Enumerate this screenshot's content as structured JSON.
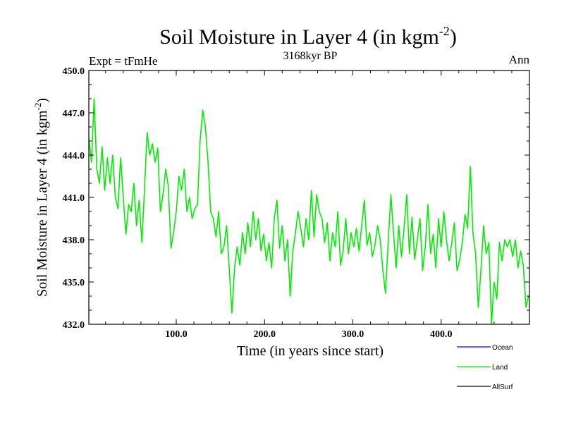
{
  "header": {
    "title": "Soil Moisture in Layer 4 (in kgm",
    "title_sup": "-2",
    "title_close": ")",
    "subtitle": "3168kyr BP",
    "left_label": "Expt = tFmHe",
    "right_label": "Ann"
  },
  "axes": {
    "xlabel": "Time (in years since start)",
    "ylabel": "Soil Moisture in Layer 4 (in kgm",
    "ylabel_sup": "-2",
    "ylabel_close": ")"
  },
  "colors": {
    "land": "#00ee00",
    "ocean": "#0000ff",
    "allsurf": "#000000",
    "frame": "#000000"
  },
  "chart_data": {
    "type": "line",
    "title": "Soil Moisture in Layer 4 (in kgm-2)",
    "xlabel": "Time (in years since start)",
    "ylabel": "Soil Moisture in Layer 4 (in kgm-2)",
    "xlim": [
      1,
      500
    ],
    "ylim": [
      432.0,
      450.0
    ],
    "xticks": [
      100,
      200,
      300,
      400
    ],
    "xtick_labels": [
      "100.0",
      "200.0",
      "300.0",
      "400.0"
    ],
    "yticks": [
      432,
      435,
      438,
      441,
      444,
      447,
      450
    ],
    "ytick_labels": [
      "432.0",
      "435.0",
      "438.0",
      "441.0",
      "444.0",
      "447.0",
      "450.0"
    ],
    "legend": {
      "position": "bottom-right",
      "entries": [
        "Ocean",
        "Land",
        "AllSurf"
      ]
    },
    "series": [
      {
        "name": "Land",
        "color": "#00ee00",
        "x": [
          1,
          4,
          7,
          10,
          13,
          16,
          19,
          22,
          25,
          28,
          31,
          34,
          37,
          40,
          43,
          46,
          49,
          52,
          55,
          58,
          61,
          64,
          67,
          70,
          73,
          76,
          79,
          82,
          85,
          88,
          91,
          94,
          97,
          100,
          103,
          106,
          109,
          112,
          115,
          118,
          121,
          124,
          127,
          130,
          133,
          136,
          139,
          142,
          145,
          148,
          151,
          154,
          157,
          160,
          163,
          166,
          169,
          172,
          175,
          178,
          181,
          184,
          187,
          190,
          193,
          196,
          199,
          202,
          205,
          208,
          211,
          214,
          217,
          220,
          223,
          226,
          229,
          232,
          235,
          238,
          241,
          244,
          247,
          250,
          253,
          256,
          259,
          262,
          265,
          268,
          271,
          274,
          277,
          280,
          283,
          286,
          289,
          292,
          295,
          298,
          301,
          304,
          307,
          310,
          313,
          316,
          319,
          322,
          325,
          328,
          331,
          334,
          337,
          340,
          343,
          346,
          349,
          352,
          355,
          358,
          361,
          364,
          367,
          370,
          373,
          376,
          379,
          382,
          385,
          388,
          391,
          394,
          397,
          400,
          403,
          406,
          409,
          412,
          415,
          418,
          421,
          424,
          427,
          430,
          433,
          436,
          439,
          442,
          445,
          448,
          451,
          454,
          457,
          460,
          463,
          466,
          469,
          472,
          475,
          478,
          481,
          484,
          487,
          490,
          493,
          496,
          499
        ],
        "values": [
          445.2,
          443.5,
          448.0,
          443.0,
          442.0,
          444.6,
          441.5,
          443.8,
          442.0,
          444.0,
          441.0,
          440.2,
          443.8,
          441.0,
          438.4,
          440.5,
          440.0,
          442.0,
          439.0,
          440.8,
          437.8,
          441.5,
          445.6,
          444.0,
          444.8,
          443.5,
          444.5,
          440.0,
          441.2,
          443.0,
          441.8,
          437.4,
          438.5,
          440.0,
          442.5,
          441.5,
          443.0,
          440.0,
          441.0,
          439.5,
          440.2,
          440.5,
          445.0,
          447.2,
          446.0,
          443.5,
          440.0,
          439.5,
          438.2,
          440.0,
          437.0,
          437.5,
          439.0,
          436.0,
          432.8,
          436.0,
          437.5,
          436.2,
          438.5,
          437.0,
          439.2,
          437.5,
          440.0,
          438.0,
          439.5,
          437.2,
          438.4,
          436.5,
          437.8,
          436.0,
          439.5,
          440.8,
          437.4,
          439.0,
          436.5,
          438.0,
          434.0,
          437.2,
          438.5,
          440.0,
          438.8,
          437.5,
          439.5,
          438.0,
          441.5,
          438.2,
          441.2,
          440.0,
          439.5,
          437.8,
          439.2,
          436.5,
          438.5,
          437.5,
          440.0,
          436.2,
          437.2,
          439.5,
          437.0,
          438.5,
          437.5,
          438.8,
          437.2,
          439.0,
          440.8,
          437.6,
          438.5,
          436.8,
          437.6,
          439.0,
          438.0,
          435.8,
          434.2,
          437.8,
          441.2,
          438.5,
          436.0,
          439.0,
          436.8,
          438.8,
          441.2,
          437.0,
          439.6,
          436.6,
          438.0,
          439.5,
          435.8,
          437.5,
          440.5,
          437.0,
          438.4,
          436.0,
          439.5,
          437.5,
          440.0,
          438.0,
          436.5,
          437.8,
          439.2,
          435.8,
          436.6,
          437.8,
          439.8,
          438.8,
          443.2,
          438.5,
          437.0,
          433.2,
          435.8,
          439.0,
          437.0,
          437.8,
          432.0,
          435.0,
          433.8,
          437.8,
          436.5,
          438.0,
          437.5,
          438.0,
          436.8,
          438.0,
          436.0,
          437.2,
          436.2,
          433.2,
          434.0
        ]
      },
      {
        "name": "Ocean",
        "color": "#0000ff",
        "values": []
      },
      {
        "name": "AllSurf",
        "color": "#000000",
        "values": []
      }
    ]
  }
}
